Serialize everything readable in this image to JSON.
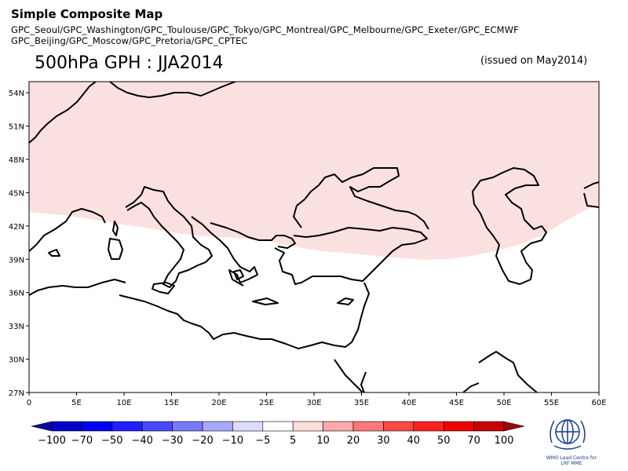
{
  "header": {
    "title": "Simple Composite Map",
    "models_line1": "GPC_Seoul/GPC_Washington/GPC_Toulouse/GPC_Tokyo/GPC_Montreal/GPC_Melbourne/GPC_Exeter/GPC_ECMWF",
    "models_line2": "GPC_Beijing/GPC_Moscow/GPC_Pretoria/GPC_CPTEC",
    "subtitle": "500hPa GPH : JJA2014",
    "issued": "(issued on May2014)"
  },
  "map": {
    "lat_labels": [
      "54N",
      "51N",
      "48N",
      "45N",
      "42N",
      "39N",
      "36N",
      "33N",
      "30N",
      "27N"
    ],
    "lat_values": [
      54,
      51,
      48,
      45,
      42,
      39,
      36,
      33,
      30,
      27
    ],
    "lon_labels": [
      "0",
      "5E",
      "10E",
      "15E",
      "20E",
      "25E",
      "30E",
      "35E",
      "40E",
      "45E",
      "50E",
      "55E",
      "60E"
    ],
    "lon_values": [
      0,
      5,
      10,
      15,
      20,
      25,
      30,
      35,
      40,
      45,
      50,
      55,
      60
    ],
    "lat_range": [
      27,
      55
    ],
    "lon_range": [
      0,
      60
    ],
    "anomaly_fill_color": "#fbe0e0",
    "anomaly_category": "5 to 10"
  },
  "colorbar": {
    "labels": [
      "−100",
      "−70",
      "−50",
      "−40",
      "−30",
      "−20",
      "−10",
      "−5",
      "5",
      "10",
      "20",
      "30",
      "40",
      "50",
      "70",
      "100"
    ],
    "colors": [
      "#0a0a9a",
      "#0000c8",
      "#0000f0",
      "#2020ff",
      "#4848ff",
      "#7878ff",
      "#a8a8ff",
      "#dcdcff",
      "#ffffff",
      "#ffdcdc",
      "#ffaaaa",
      "#ff7878",
      "#ff4848",
      "#ff2020",
      "#f00000",
      "#c80000",
      "#9a0a0a"
    ]
  },
  "logo": {
    "line1": "WMO Lead Centre for",
    "line2": "LRF MME",
    "icon": "wmo-emblem-icon"
  }
}
